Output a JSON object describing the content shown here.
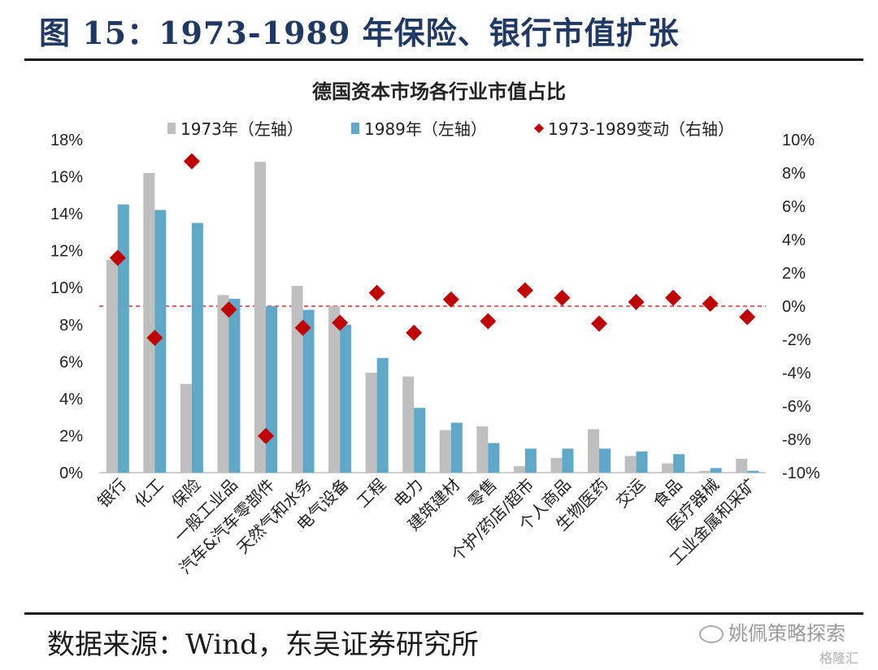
{
  "figure_title": "图 15：1973-1989 年保险、银行市值扩张",
  "source_note": "数据来源：Wind，东吴证券研究所",
  "watermark": "姚佩策略探索",
  "watermark_sub": "格隆汇",
  "colors": {
    "series_1973": "#bfbfbf",
    "series_1989": "#5fa8c8",
    "series_change": "#c00000",
    "title": "#1f3864"
  },
  "chart_data": {
    "type": "bar",
    "title": "德国资本市场各行业市值占比",
    "legend_position": "top",
    "categories": [
      "银行",
      "化工",
      "保险",
      "一般工业品",
      "汽车&汽车零部件",
      "天然气和水务",
      "电气设备",
      "工程",
      "电力",
      "建筑建材",
      "零售",
      "个护/药店/超市",
      "个人商品",
      "生物医药",
      "交运",
      "食品",
      "医疗器械",
      "工业金属和采矿"
    ],
    "series": [
      {
        "name": "1973年（左轴）",
        "axis": "left",
        "type": "bar",
        "values": [
          11.5,
          16.2,
          4.8,
          9.6,
          16.8,
          10.1,
          9.0,
          5.4,
          5.2,
          2.3,
          2.5,
          0.35,
          0.8,
          2.35,
          0.9,
          0.5,
          0.1,
          0.75
        ]
      },
      {
        "name": "1989年（左轴）",
        "axis": "left",
        "type": "bar",
        "values": [
          14.5,
          14.2,
          13.5,
          9.4,
          9.0,
          8.8,
          8.0,
          6.2,
          3.5,
          2.7,
          1.6,
          1.3,
          1.3,
          1.3,
          1.15,
          1.0,
          0.25,
          0.1
        ]
      },
      {
        "name": "1973-1989变动（右轴）",
        "axis": "right",
        "type": "scatter",
        "values": [
          2.9,
          -1.9,
          8.7,
          -0.2,
          -7.8,
          -1.3,
          -1.0,
          0.8,
          -1.6,
          0.4,
          -0.9,
          0.95,
          0.5,
          -1.05,
          0.25,
          0.5,
          0.15,
          -0.65
        ]
      }
    ],
    "left_axis": {
      "ylim": [
        0,
        18
      ],
      "step": 2,
      "ticks": [
        "0%",
        "2%",
        "4%",
        "6%",
        "8%",
        "10%",
        "12%",
        "14%",
        "16%",
        "18%"
      ]
    },
    "right_axis": {
      "ylim": [
        -10,
        10
      ],
      "step": 2,
      "ticks": [
        "-10%",
        "-8%",
        "-6%",
        "-4%",
        "-2%",
        "0%",
        "2%",
        "4%",
        "6%",
        "8%",
        "10%"
      ]
    },
    "reference_line": {
      "axis": "right",
      "value": 0,
      "style": "dashed",
      "color": "#e03030"
    },
    "grid": false
  }
}
